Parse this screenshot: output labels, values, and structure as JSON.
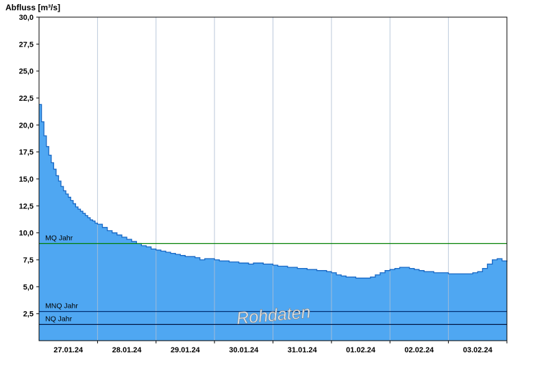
{
  "chart_data": {
    "type": "area",
    "title": "Abfluss [m³/s]",
    "watermark": "Rohdaten",
    "legend": "none",
    "grid": {
      "vertical": true,
      "horizontal": false
    },
    "x_axis": {
      "range_hours": [
        0,
        192
      ],
      "hours_per_day": 24,
      "day_labels": [
        "27.01.24",
        "28.01.24",
        "29.01.24",
        "30.01.24",
        "31.01.24",
        "01.02.24",
        "02.02.24",
        "03.02.24"
      ]
    },
    "y_axis": {
      "min": 0,
      "max": 30,
      "tick_step": 2.5,
      "tick_labels": [
        "2,5",
        "5,0",
        "7,5",
        "10,0",
        "12,5",
        "15,0",
        "17,5",
        "20,0",
        "22,5",
        "25,0",
        "27,5",
        "30,0"
      ]
    },
    "reference_lines": [
      {
        "label": "MQ Jahr",
        "value": 9.0,
        "color": "#007f00"
      },
      {
        "label": "MNQ Jahr",
        "value": 2.7,
        "color": "#002d72"
      },
      {
        "label": "NQ Jahr",
        "value": 1.5,
        "color": "#001440"
      }
    ],
    "series": [
      {
        "name": "Abfluss Rohdaten",
        "unit": "m³/s",
        "points": [
          [
            0,
            21.9
          ],
          [
            1,
            20.3
          ],
          [
            2,
            19.0
          ],
          [
            3,
            18.0
          ],
          [
            4,
            17.2
          ],
          [
            5,
            16.5
          ],
          [
            6,
            15.9
          ],
          [
            7,
            15.3
          ],
          [
            8,
            14.8
          ],
          [
            9,
            14.3
          ],
          [
            10,
            13.9
          ],
          [
            11,
            13.6
          ],
          [
            12,
            13.3
          ],
          [
            13,
            13.0
          ],
          [
            14,
            12.7
          ],
          [
            15,
            12.4
          ],
          [
            16,
            12.2
          ],
          [
            17,
            12.0
          ],
          [
            18,
            11.8
          ],
          [
            19,
            11.6
          ],
          [
            20,
            11.4
          ],
          [
            21,
            11.2
          ],
          [
            22,
            11.1
          ],
          [
            23,
            10.9
          ],
          [
            24,
            10.8
          ],
          [
            26,
            10.5
          ],
          [
            28,
            10.2
          ],
          [
            30,
            10.0
          ],
          [
            32,
            9.8
          ],
          [
            34,
            9.6
          ],
          [
            36,
            9.4
          ],
          [
            38,
            9.2
          ],
          [
            40,
            9.0
          ],
          [
            42,
            8.8
          ],
          [
            44,
            8.7
          ],
          [
            46,
            8.5
          ],
          [
            48,
            8.4
          ],
          [
            50,
            8.3
          ],
          [
            52,
            8.2
          ],
          [
            54,
            8.1
          ],
          [
            56,
            8.0
          ],
          [
            58,
            7.9
          ],
          [
            60,
            7.8
          ],
          [
            62,
            7.8
          ],
          [
            64,
            7.7
          ],
          [
            66,
            7.5
          ],
          [
            68,
            7.6
          ],
          [
            70,
            7.6
          ],
          [
            72,
            7.5
          ],
          [
            74,
            7.4
          ],
          [
            76,
            7.4
          ],
          [
            78,
            7.3
          ],
          [
            80,
            7.3
          ],
          [
            82,
            7.2
          ],
          [
            84,
            7.2
          ],
          [
            86,
            7.1
          ],
          [
            88,
            7.2
          ],
          [
            90,
            7.2
          ],
          [
            92,
            7.1
          ],
          [
            94,
            7.1
          ],
          [
            96,
            7.0
          ],
          [
            98,
            6.9
          ],
          [
            100,
            6.9
          ],
          [
            102,
            6.8
          ],
          [
            104,
            6.8
          ],
          [
            106,
            6.7
          ],
          [
            108,
            6.7
          ],
          [
            110,
            6.6
          ],
          [
            112,
            6.6
          ],
          [
            114,
            6.5
          ],
          [
            116,
            6.5
          ],
          [
            118,
            6.4
          ],
          [
            120,
            6.3
          ],
          [
            122,
            6.1
          ],
          [
            124,
            6.0
          ],
          [
            126,
            5.9
          ],
          [
            128,
            5.9
          ],
          [
            130,
            5.8
          ],
          [
            132,
            5.8
          ],
          [
            134,
            5.8
          ],
          [
            136,
            5.9
          ],
          [
            138,
            6.1
          ],
          [
            140,
            6.3
          ],
          [
            142,
            6.5
          ],
          [
            144,
            6.6
          ],
          [
            146,
            6.7
          ],
          [
            148,
            6.8
          ],
          [
            150,
            6.8
          ],
          [
            152,
            6.7
          ],
          [
            154,
            6.6
          ],
          [
            156,
            6.5
          ],
          [
            158,
            6.4
          ],
          [
            160,
            6.4
          ],
          [
            162,
            6.3
          ],
          [
            164,
            6.3
          ],
          [
            166,
            6.3
          ],
          [
            168,
            6.2
          ],
          [
            170,
            6.2
          ],
          [
            172,
            6.2
          ],
          [
            174,
            6.2
          ],
          [
            176,
            6.2
          ],
          [
            178,
            6.3
          ],
          [
            180,
            6.4
          ],
          [
            182,
            6.7
          ],
          [
            184,
            7.1
          ],
          [
            186,
            7.5
          ],
          [
            188,
            7.6
          ],
          [
            190,
            7.4
          ],
          [
            192,
            7.3
          ]
        ]
      }
    ],
    "colors": {
      "area_fill": "#4fa7f2",
      "area_stroke": "#1767c4",
      "grid": "#aebfd4",
      "axis": "#000000",
      "watermark_fill": "#f2f2f2",
      "watermark_stroke": "#8a8a8a"
    }
  }
}
